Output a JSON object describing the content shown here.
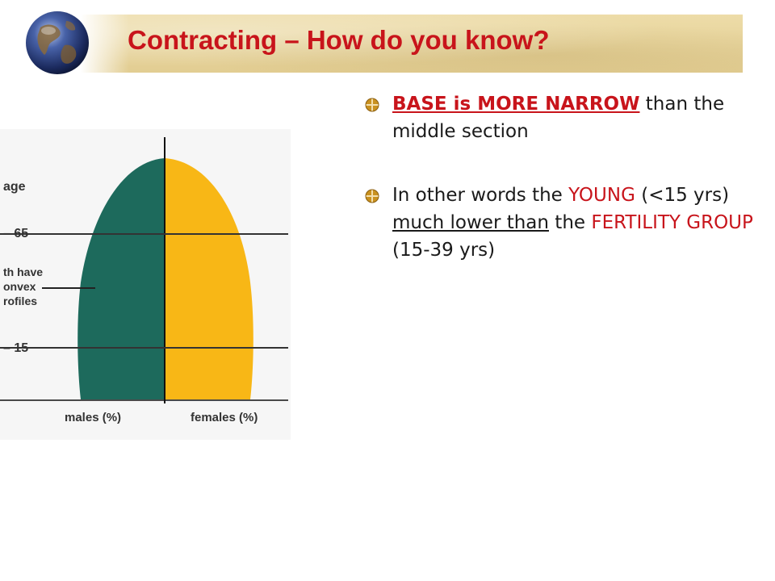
{
  "slide": {
    "title": "Contracting – How do you know?",
    "colors": {
      "title": "#c8141b",
      "title_bar": "#e7d49e",
      "males": "#1d6a5c",
      "females": "#f8b716",
      "accent": "#c8141b"
    },
    "header_icon": "globe-icon"
  },
  "figure": {
    "axis_title": "age",
    "age_65_label": "– 65",
    "annotation_line_1": "th have",
    "annotation_line_2": "onvex",
    "annotation_line_3": "rofiles",
    "age_15_label": "– 15",
    "males_label": "males (%)",
    "females_label": "females (%)"
  },
  "bullets": {
    "icon": "bullet-diamond-icon",
    "item1": {
      "emphasis": "BASE is MORE NARROW",
      "rest": " than the middle section"
    },
    "item2": {
      "part1": "In other words the ",
      "young": "YOUNG",
      "part2": " (<15 yrs) ",
      "underlined": "much lower than",
      "part3": " the ",
      "fertility": "FERTILITY GROUP",
      "part4": " (15-39 yrs)"
    }
  }
}
